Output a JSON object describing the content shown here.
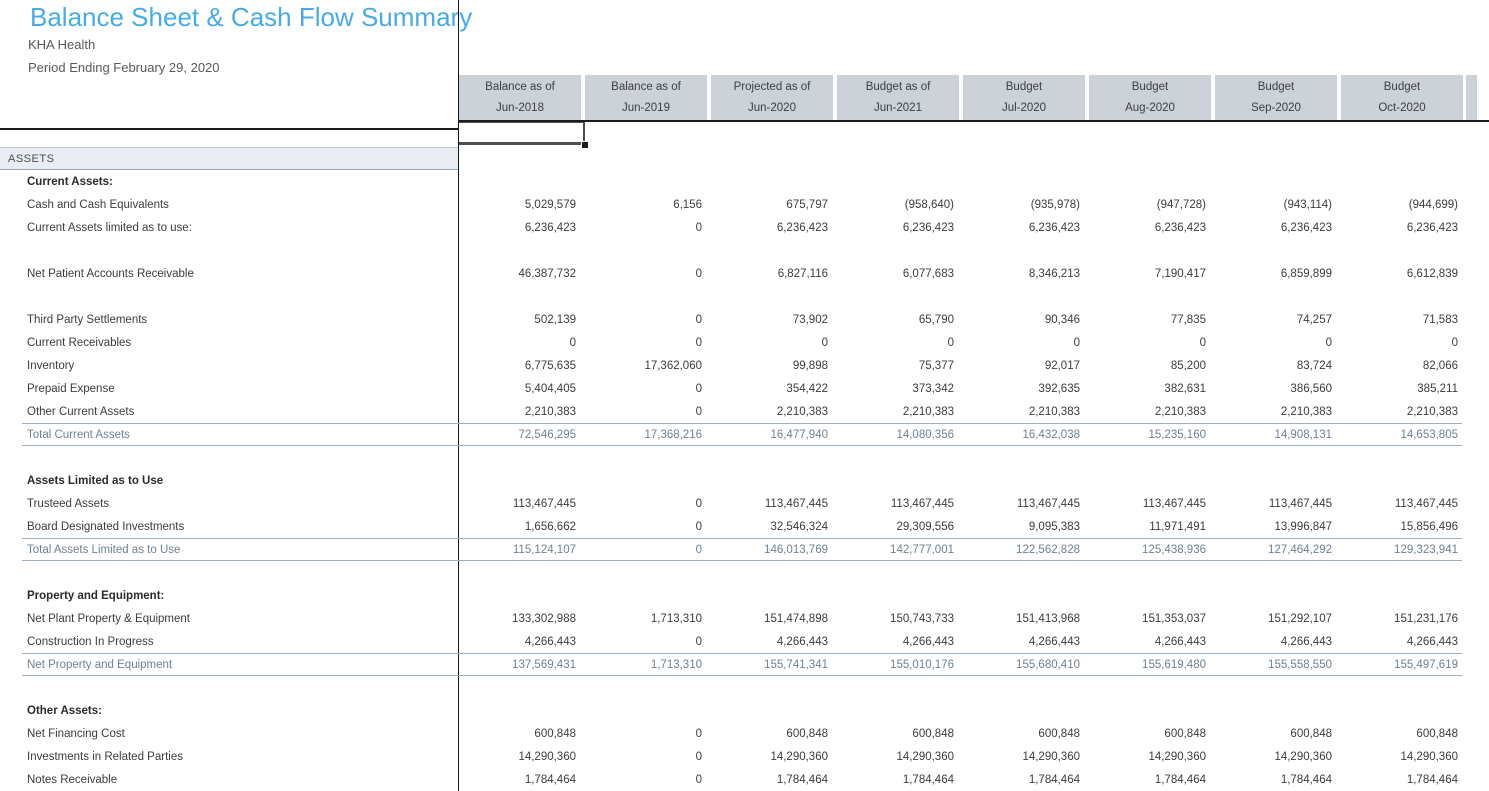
{
  "report": {
    "title": "Balance Sheet & Cash Flow Summary",
    "company": "KHA Health",
    "period": "Period Ending February 29, 2020"
  },
  "colors": {
    "title_blue": "#47abe8",
    "header_fill": "#ccd2d8",
    "assets_band_fill": "#e9edf1",
    "total_row_text": "#6d8294",
    "total_row_line": "#9cb1c2",
    "divider_black": "#1c1c1c"
  },
  "table": {
    "section_band": "ASSETS",
    "columns": [
      {
        "line1": "Balance as of",
        "line2": "Jun-2018"
      },
      {
        "line1": "Balance as of",
        "line2": "Jun-2019"
      },
      {
        "line1": "Projected as of",
        "line2": "Jun-2020"
      },
      {
        "line1": "Budget as of",
        "line2": "Jun-2021"
      },
      {
        "line1": "Budget",
        "line2": "Jul-2020"
      },
      {
        "line1": "Budget",
        "line2": "Aug-2020"
      },
      {
        "line1": "Budget",
        "line2": "Sep-2020"
      },
      {
        "line1": "Budget",
        "line2": "Oct-2020"
      }
    ],
    "rows": [
      {
        "type": "section",
        "label": "Current Assets:"
      },
      {
        "type": "item",
        "label": "Cash and Cash Equivalents",
        "values": [
          "5,029,579",
          "6,156",
          "675,797",
          "(958,640)",
          "(935,978)",
          "(947,728)",
          "(943,114)",
          "(944,699)"
        ]
      },
      {
        "type": "item",
        "label": "Current Assets limited as to use:",
        "values": [
          "6,236,423",
          "0",
          "6,236,423",
          "6,236,423",
          "6,236,423",
          "6,236,423",
          "6,236,423",
          "6,236,423"
        ]
      },
      {
        "type": "blank"
      },
      {
        "type": "item",
        "label": "Net Patient Accounts Receivable",
        "values": [
          "46,387,732",
          "0",
          "6,827,116",
          "6,077,683",
          "8,346,213",
          "7,190,417",
          "6,859,899",
          "6,612,839"
        ]
      },
      {
        "type": "blank"
      },
      {
        "type": "item",
        "label": "Third Party Settlements",
        "values": [
          "502,139",
          "0",
          "73,902",
          "65,790",
          "90,346",
          "77,835",
          "74,257",
          "71,583"
        ]
      },
      {
        "type": "item",
        "label": "Current Receivables",
        "values": [
          "0",
          "0",
          "0",
          "0",
          "0",
          "0",
          "0",
          "0"
        ]
      },
      {
        "type": "item",
        "label": "Inventory",
        "values": [
          "6,775,635",
          "17,362,060",
          "99,898",
          "75,377",
          "92,017",
          "85,200",
          "83,724",
          "82,066"
        ]
      },
      {
        "type": "item",
        "label": "Prepaid Expense",
        "values": [
          "5,404,405",
          "0",
          "354,422",
          "373,342",
          "392,635",
          "382,631",
          "386,560",
          "385,211"
        ]
      },
      {
        "type": "item",
        "label": "Other Current Assets",
        "values": [
          "2,210,383",
          "0",
          "2,210,383",
          "2,210,383",
          "2,210,383",
          "2,210,383",
          "2,210,383",
          "2,210,383"
        ]
      },
      {
        "type": "total",
        "label": "Total Current Assets",
        "values": [
          "72,546,295",
          "17,368,216",
          "16,477,940",
          "14,080,356",
          "16,432,038",
          "15,235,160",
          "14,908,131",
          "14,653,805"
        ]
      },
      {
        "type": "blank"
      },
      {
        "type": "section",
        "label": "Assets Limited as to Use"
      },
      {
        "type": "item",
        "label": "Trusteed Assets",
        "values": [
          "113,467,445",
          "0",
          "113,467,445",
          "113,467,445",
          "113,467,445",
          "113,467,445",
          "113,467,445",
          "113,467,445"
        ]
      },
      {
        "type": "item",
        "label": "Board Designated Investments",
        "values": [
          "1,656,662",
          "0",
          "32,546,324",
          "29,309,556",
          "9,095,383",
          "11,971,491",
          "13,996,847",
          "15,856,496"
        ]
      },
      {
        "type": "total",
        "label": "Total Assets Limited as to Use",
        "values": [
          "115,124,107",
          "0",
          "146,013,769",
          "142,777,001",
          "122,562,828",
          "125,438,936",
          "127,464,292",
          "129,323,941"
        ]
      },
      {
        "type": "blank"
      },
      {
        "type": "section",
        "label": "Property and Equipment:"
      },
      {
        "type": "item",
        "label": "Net Plant Property & Equipment",
        "values": [
          "133,302,988",
          "1,713,310",
          "151,474,898",
          "150,743,733",
          "151,413,968",
          "151,353,037",
          "151,292,107",
          "151,231,176"
        ]
      },
      {
        "type": "item",
        "label": "Construction In Progress",
        "values": [
          "4,266,443",
          "0",
          "4,266,443",
          "4,266,443",
          "4,266,443",
          "4,266,443",
          "4,266,443",
          "4,266,443"
        ]
      },
      {
        "type": "total",
        "label": "Net Property and Equipment",
        "values": [
          "137,569,431",
          "1,713,310",
          "155,741,341",
          "155,010,176",
          "155,680,410",
          "155,619,480",
          "155,558,550",
          "155,497,619"
        ]
      },
      {
        "type": "blank"
      },
      {
        "type": "section",
        "label": "Other Assets:"
      },
      {
        "type": "item",
        "label": "Net Financing Cost",
        "values": [
          "600,848",
          "0",
          "600,848",
          "600,848",
          "600,848",
          "600,848",
          "600,848",
          "600,848"
        ]
      },
      {
        "type": "item",
        "label": "Investments in Related Parties",
        "values": [
          "14,290,360",
          "0",
          "14,290,360",
          "14,290,360",
          "14,290,360",
          "14,290,360",
          "14,290,360",
          "14,290,360"
        ]
      },
      {
        "type": "item",
        "label": "Notes Receivable",
        "values": [
          "1,784,464",
          "0",
          "1,784,464",
          "1,784,464",
          "1,784,464",
          "1,784,464",
          "1,784,464",
          "1,784,464"
        ]
      }
    ]
  }
}
